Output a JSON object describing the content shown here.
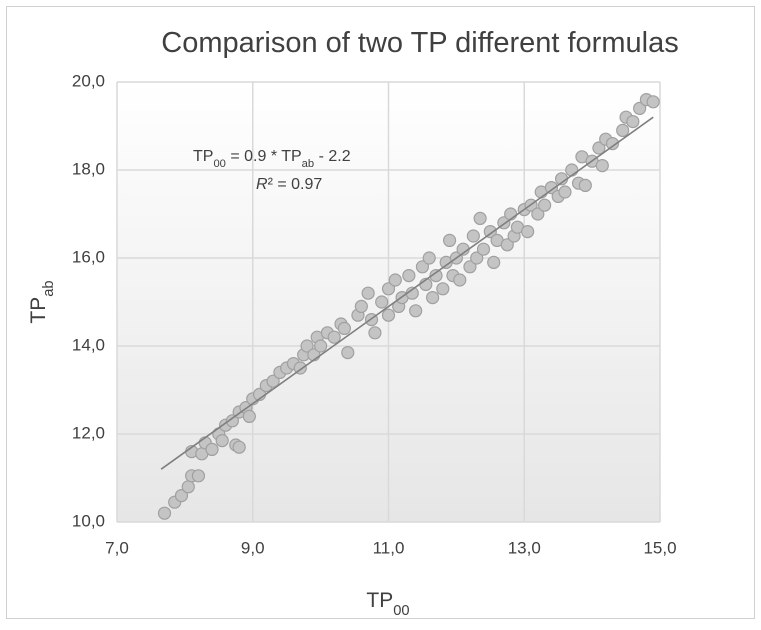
{
  "chart_data": {
    "type": "scatter",
    "title": "Comparison of two TP different formulas",
    "x_label": [
      {
        "text": "TP"
      },
      {
        "text": "00",
        "sub": true
      }
    ],
    "y_label": [
      {
        "text": "TP"
      },
      {
        "text": "ab",
        "sub": true
      }
    ],
    "equation": [
      {
        "text": "TP"
      },
      {
        "text": "00",
        "sub": true
      },
      {
        "text": " = 0.9 "
      },
      {
        "text": "*"
      },
      {
        "text": " TP"
      },
      {
        "text": "ab",
        "sub": true
      },
      {
        "text": " - 2.2"
      }
    ],
    "r_squared": [
      {
        "text": "R",
        "italic": true
      },
      {
        "text": "² = 0.97"
      }
    ],
    "xlim": [
      7,
      15
    ],
    "ylim": [
      10,
      20
    ],
    "xticks": [
      {
        "value": 7,
        "label": "7,0"
      },
      {
        "value": 9,
        "label": "9,0"
      },
      {
        "value": 11,
        "label": "11,0"
      },
      {
        "value": 13,
        "label": "13,0"
      },
      {
        "value": 15,
        "label": "15,0"
      }
    ],
    "yticks": [
      {
        "value": 10,
        "label": "10,0"
      },
      {
        "value": 12,
        "label": "12,0"
      },
      {
        "value": 14,
        "label": "14,0"
      },
      {
        "value": 16,
        "label": "16,0"
      },
      {
        "value": 18,
        "label": "18,0"
      },
      {
        "value": 20,
        "label": "20,0"
      }
    ],
    "grid": true,
    "color": "#c4c4c4",
    "trendline": {
      "color": "#7f7f7f",
      "x": [
        7.65,
        14.9
      ],
      "y": [
        11.2,
        19.2
      ]
    },
    "x": [
      7.7,
      7.85,
      7.95,
      8.05,
      8.1,
      8.2,
      8.1,
      8.25,
      8.3,
      8.4,
      8.5,
      8.55,
      8.6,
      8.7,
      8.75,
      8.8,
      8.8,
      8.9,
      8.95,
      9.0,
      9.1,
      9.2,
      9.3,
      9.4,
      9.5,
      9.6,
      9.7,
      9.75,
      9.8,
      9.9,
      9.95,
      10.0,
      10.1,
      10.2,
      10.3,
      10.35,
      10.4,
      10.55,
      10.6,
      10.7,
      10.75,
      10.8,
      10.9,
      11.0,
      11.0,
      11.1,
      11.15,
      11.2,
      11.3,
      11.35,
      11.4,
      11.5,
      11.55,
      11.6,
      11.65,
      11.7,
      11.8,
      11.85,
      11.9,
      11.95,
      12.0,
      12.05,
      12.1,
      12.2,
      12.25,
      12.3,
      12.35,
      12.4,
      12.5,
      12.55,
      12.6,
      12.7,
      12.75,
      12.8,
      12.85,
      12.9,
      13.0,
      13.05,
      13.1,
      13.2,
      13.25,
      13.3,
      13.4,
      13.5,
      13.55,
      13.6,
      13.7,
      13.8,
      13.85,
      13.9,
      14.0,
      14.1,
      14.15,
      14.2,
      14.3,
      14.45,
      14.5,
      14.6,
      14.7,
      14.8,
      14.9
    ],
    "y": [
      10.2,
      10.45,
      10.6,
      10.8,
      11.05,
      11.05,
      11.6,
      11.55,
      11.8,
      11.65,
      12.0,
      11.85,
      12.2,
      12.3,
      11.75,
      11.7,
      12.5,
      12.6,
      12.4,
      12.8,
      12.9,
      13.1,
      13.2,
      13.4,
      13.5,
      13.6,
      13.5,
      13.8,
      14.0,
      13.8,
      14.2,
      14.0,
      14.3,
      14.2,
      14.5,
      14.4,
      13.85,
      14.7,
      14.9,
      15.2,
      14.6,
      14.3,
      15.0,
      14.7,
      15.3,
      15.5,
      14.9,
      15.1,
      15.6,
      15.2,
      14.8,
      15.8,
      15.4,
      16.0,
      15.1,
      15.6,
      15.3,
      15.9,
      16.4,
      15.6,
      16.0,
      15.5,
      16.2,
      15.8,
      16.5,
      16.0,
      16.9,
      16.2,
      16.6,
      15.9,
      16.4,
      16.8,
      16.3,
      17.0,
      16.5,
      16.7,
      17.1,
      16.6,
      17.2,
      17.0,
      17.5,
      17.2,
      17.6,
      17.4,
      17.8,
      17.5,
      18.0,
      17.7,
      18.3,
      17.65,
      18.2,
      18.5,
      18.1,
      18.7,
      18.6,
      18.9,
      19.2,
      19.1,
      19.4,
      19.6,
      19.55
    ]
  }
}
